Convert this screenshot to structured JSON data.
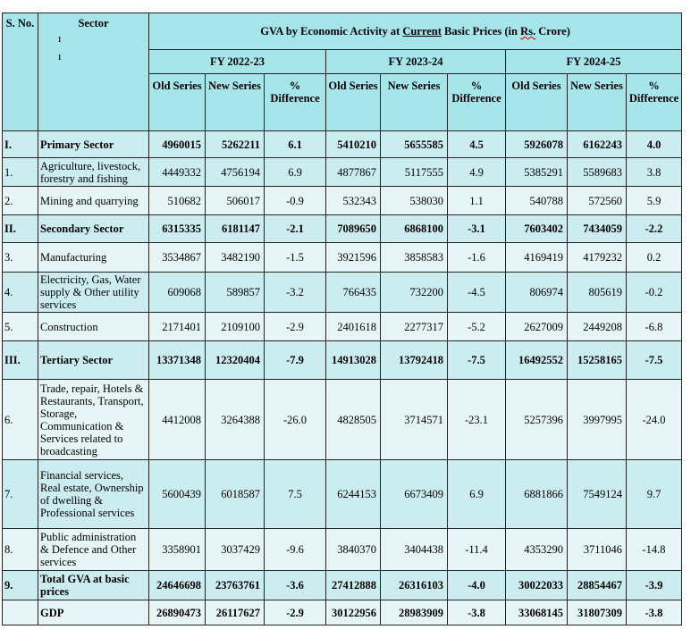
{
  "header": {
    "sno": "S. No.",
    "sector": "Sector",
    "title_pre": "GVA by Economic Activity at ",
    "title_underlined": "Current",
    "title_mid": " Basic Prices (in ",
    "title_rs": "Rs.",
    "title_post": " Crore)",
    "years": [
      "FY 2022-23",
      "FY 2023-24",
      "FY 2024-25"
    ],
    "subcols": [
      [
        "Old Series",
        "New Series",
        "% Difference"
      ],
      [
        "Old Series",
        "New Series",
        "% Difference"
      ],
      [
        "Old Series",
        "New Series",
        "% Difference"
      ]
    ]
  },
  "colors": {
    "header_bg": "#a6e5ea",
    "row_dark": "#ccedf0",
    "row_light": "#e6f6f7"
  },
  "rows": [
    {
      "sno": "I.",
      "sector": "Primary Sector",
      "bold": true,
      "values": [
        "4960015",
        "5262211",
        "6.1",
        "5410210",
        "5655585",
        "4.5",
        "5926078",
        "6162243",
        "4.0"
      ]
    },
    {
      "sno": "1.",
      "sector": "Agriculture, livestock, forestry and fishing",
      "bold": false,
      "values": [
        "4449332",
        "4756194",
        "6.9",
        "4877867",
        "5117555",
        "4.9",
        "5385291",
        "5589683",
        "3.8"
      ]
    },
    {
      "sno": "2.",
      "sector": "Mining and quarrying",
      "bold": false,
      "values": [
        "510682",
        "506017",
        "-0.9",
        "532343",
        "538030",
        "1.1",
        "540788",
        "572560",
        "5.9"
      ]
    },
    {
      "sno": "II.",
      "sector": "Secondary Sector",
      "bold": true,
      "values": [
        "6315335",
        "6181147",
        "-2.1",
        "7089650",
        "6868100",
        "-3.1",
        "7603402",
        "7434059",
        "-2.2"
      ]
    },
    {
      "sno": "3.",
      "sector": "Manufacturing",
      "bold": false,
      "values": [
        "3534867",
        "3482190",
        "-1.5",
        "3921596",
        "3858583",
        "-1.6",
        "4169419",
        "4179232",
        "0.2"
      ]
    },
    {
      "sno": "4.",
      "sector": "Electricity, Gas, Water supply & Other utility services",
      "bold": false,
      "values": [
        "609068",
        "589857",
        "-3.2",
        "766435",
        "732200",
        "-4.5",
        "806974",
        "805619",
        "-0.2"
      ]
    },
    {
      "sno": "5.",
      "sector": "Construction",
      "bold": false,
      "values": [
        "2171401",
        "2109100",
        "-2.9",
        "2401618",
        "2277317",
        "-5.2",
        "2627009",
        "2449208",
        "-6.8"
      ]
    },
    {
      "sno": "III.",
      "sector": "Tertiary Sector",
      "bold": true,
      "values": [
        "13371348",
        "12320404",
        "-7.9",
        "14913028",
        "13792418",
        "-7.5",
        "16492552",
        "15258165",
        "-7.5"
      ]
    },
    {
      "sno": "6.",
      "sector": "Trade, repair, Hotels & Restaurants, Transport, Storage, Communication & Services related to broadcasting",
      "bold": false,
      "values": [
        "4412008",
        "3264388",
        "-26.0",
        "4828505",
        "3714571",
        "-23.1",
        "5257396",
        "3997995",
        "-24.0"
      ]
    },
    {
      "sno": "7.",
      "sector": "Financial services, Real estate, Ownership of dwelling & Professional services",
      "bold": false,
      "values": [
        "5600439",
        "6018587",
        "7.5",
        "6244153",
        "6673409",
        "6.9",
        "6881866",
        "7549124",
        "9.7"
      ]
    },
    {
      "sno": "8.",
      "sector": "Public administration & Defence and Other services",
      "bold": false,
      "values": [
        "3358901",
        "3037429",
        "-9.6",
        "3840370",
        "3404438",
        "-11.4",
        "4353290",
        "3711046",
        "-14.8"
      ]
    },
    {
      "sno": "9.",
      "sector": "Total GVA at basic prices",
      "bold": true,
      "values": [
        "24646698",
        "23763761",
        "-3.6",
        "27412888",
        "26316103",
        "-4.0",
        "30022033",
        "28854467",
        "-3.9"
      ]
    },
    {
      "sno": "",
      "sector": "GDP",
      "bold": true,
      "values": [
        "26890473",
        "26117627",
        "-2.9",
        "30122956",
        "28983909",
        "-3.8",
        "33068145",
        "31807309",
        "-3.8"
      ]
    }
  ]
}
